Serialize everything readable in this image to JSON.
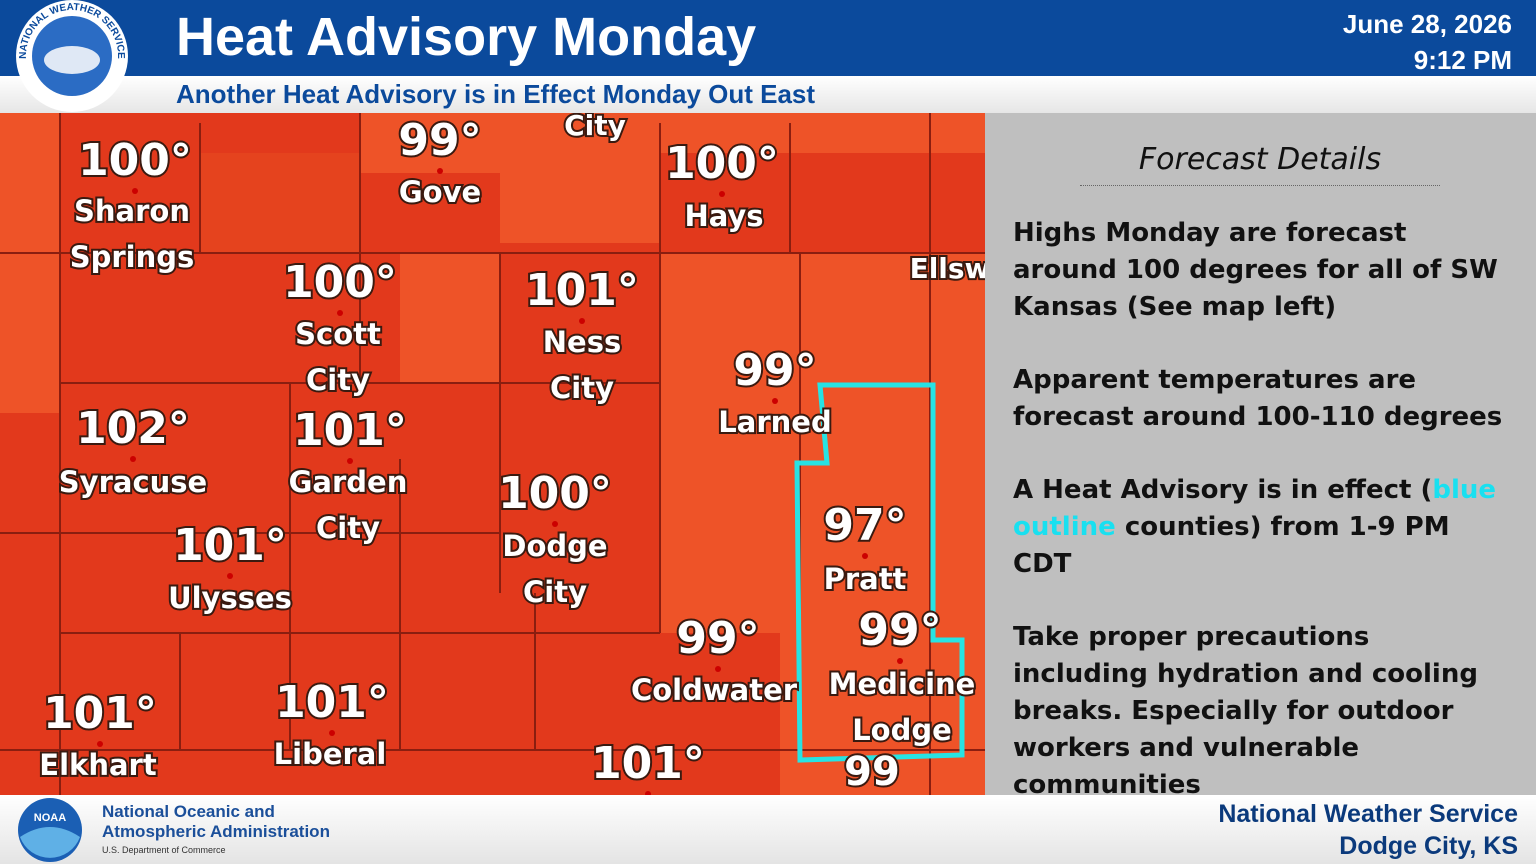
{
  "header": {
    "title": "Heat Advisory Monday",
    "subtitle": "Another Heat Advisory is in Effect Monday Out East",
    "date": "June 28, 2026",
    "time": "9:12 PM",
    "logo_text": "NATIONAL WEATHER SERVICE"
  },
  "map": {
    "labels": [
      {
        "temp": "100°",
        "name": [
          "Sharon",
          "Springs"
        ]
      },
      {
        "temp": "99°",
        "name": [
          "Gove"
        ]
      },
      {
        "temp": "100°",
        "name": [
          "Hays"
        ]
      },
      {
        "temp": "100°",
        "name": [
          "Scott",
          "City"
        ]
      },
      {
        "temp": "101°",
        "name": [
          "Ness",
          "City"
        ]
      },
      {
        "temp": "99°",
        "name": [
          "Larned"
        ]
      },
      {
        "temp": "102°",
        "name": [
          "Syracuse"
        ]
      },
      {
        "temp": "101°",
        "name": [
          "Garden",
          "City"
        ]
      },
      {
        "temp": "100°",
        "name": [
          "Dodge",
          "City"
        ]
      },
      {
        "temp": "101°",
        "name": [
          "Ulysses"
        ]
      },
      {
        "temp": "97°",
        "name": [
          "Pratt"
        ]
      },
      {
        "temp": "99°",
        "name": [
          "Medicine",
          "Lodge"
        ]
      },
      {
        "temp": "99°",
        "name": [
          "Coldwater"
        ]
      },
      {
        "temp": "101°",
        "name": [
          "Elkhart"
        ]
      },
      {
        "temp": "101°",
        "name": [
          "Liberal"
        ]
      },
      {
        "temp": "101°",
        "name": []
      }
    ],
    "partial": [
      "City",
      "Ellsw",
      "99"
    ]
  },
  "details": {
    "heading": "Forecast Details",
    "paragraphs": [
      [
        "Highs Monday are forecast around 100 degrees for all of SW Kansas (See map left)"
      ],
      [
        "Apparent temperatures are forecast around 100-110 degrees"
      ],
      [
        "A Heat Advisory is in effect (",
        "blue outline",
        " counties) from 1-9 PM CDT"
      ],
      [
        "Take proper precautions including hydration and cooling breaks. Especially for outdoor workers and vulnerable communities"
      ]
    ]
  },
  "footer": {
    "agency": [
      "National Oceanic and",
      "Atmospheric Administration"
    ],
    "department": "U.S. Department of Commerce",
    "office": [
      "National Weather Service",
      "Dodge City, KS"
    ],
    "noaa_logo": "NOAA"
  }
}
